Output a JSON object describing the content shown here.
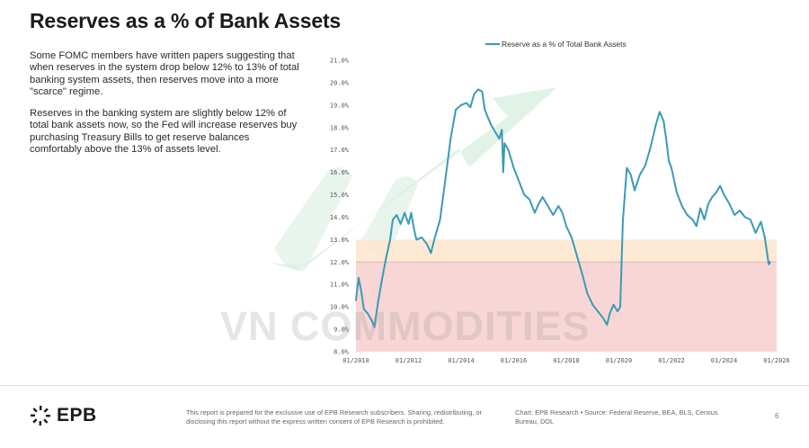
{
  "slide": {
    "title": "Reserves as a % of Bank Assets",
    "paragraph_1": "Some FOMC members have written papers suggesting that when reserves in the system drop below 12% to 13% of total banking system assets, then reserves move into a more \"scarce\" regime.",
    "paragraph_2": "Reserves in the banking system are slightly below 12% of total bank assets now, so the Fed will increase reserves buy purchasing Treasury Bills to get reserve balances comfortably above the 13% of assets level.",
    "watermark": "VN COMMODITIES"
  },
  "footer": {
    "logo_text": "EPB",
    "disclaimer": "This report is prepared for the exclusive use of EPB Research subscribers. Sharing, redistributing, or disclosing this report without the express written consent of EPB Research is prohibited.",
    "source": "Chart: EPB Research  •  Source: Federal Reserve, BEA, BLS, Census Bureau, DOL",
    "page_number": "6"
  },
  "colors": {
    "line": "#3a9bb5",
    "scarce_band": "#f7d2d0",
    "transition_band": "#fde7cf",
    "threshold_line": "#d8b9b6",
    "arrow": "#c9e8d2"
  },
  "chart_data": {
    "type": "line",
    "title": "",
    "legend": {
      "position": "top",
      "entries": [
        "Reserve as a % of Total Bank Assets"
      ]
    },
    "xlabel": "",
    "ylabel": "",
    "xlim": [
      2010.0,
      2026.0
    ],
    "ylim": [
      8.0,
      21.0
    ],
    "x_ticks": [
      {
        "value": 2010,
        "label": "01/2010"
      },
      {
        "value": 2012,
        "label": "01/2012"
      },
      {
        "value": 2014,
        "label": "01/2014"
      },
      {
        "value": 2016,
        "label": "01/2016"
      },
      {
        "value": 2018,
        "label": "01/2018"
      },
      {
        "value": 2020,
        "label": "01/2020"
      },
      {
        "value": 2022,
        "label": "01/2022"
      },
      {
        "value": 2024,
        "label": "01/2024"
      },
      {
        "value": 2026,
        "label": "01/2026"
      }
    ],
    "y_ticks": [
      {
        "value": 8,
        "label": "8.0%"
      },
      {
        "value": 9,
        "label": "9.0%"
      },
      {
        "value": 10,
        "label": "10.0%"
      },
      {
        "value": 11,
        "label": "11.0%"
      },
      {
        "value": 12,
        "label": "12.0%"
      },
      {
        "value": 13,
        "label": "13.0%"
      },
      {
        "value": 14,
        "label": "14.0%"
      },
      {
        "value": 15,
        "label": "15.0%"
      },
      {
        "value": 16,
        "label": "16.0%"
      },
      {
        "value": 17,
        "label": "17.0%"
      },
      {
        "value": 18,
        "label": "18.0%"
      },
      {
        "value": 19,
        "label": "19.0%"
      },
      {
        "value": 20,
        "label": "20.0%"
      },
      {
        "value": 21,
        "label": "21.0%"
      }
    ],
    "bands": [
      {
        "from": 8.0,
        "to": 12.0,
        "label": ""
      },
      {
        "from": 12.0,
        "to": 13.0,
        "label": ""
      }
    ],
    "threshold": 12.0,
    "series": [
      {
        "name": "Reserve as a % of Total Bank Assets",
        "points": [
          [
            2010.0,
            10.3
          ],
          [
            2010.1,
            11.3
          ],
          [
            2010.2,
            10.7
          ],
          [
            2010.3,
            9.9
          ],
          [
            2010.45,
            9.7
          ],
          [
            2010.6,
            9.4
          ],
          [
            2010.7,
            9.1
          ],
          [
            2010.85,
            10.3
          ],
          [
            2011.0,
            11.3
          ],
          [
            2011.15,
            12.2
          ],
          [
            2011.3,
            13.0
          ],
          [
            2011.4,
            13.9
          ],
          [
            2011.55,
            14.1
          ],
          [
            2011.7,
            13.7
          ],
          [
            2011.85,
            14.2
          ],
          [
            2012.0,
            13.7
          ],
          [
            2012.1,
            14.2
          ],
          [
            2012.2,
            13.5
          ],
          [
            2012.3,
            13.0
          ],
          [
            2012.5,
            13.1
          ],
          [
            2012.7,
            12.8
          ],
          [
            2012.85,
            12.4
          ],
          [
            2013.0,
            13.1
          ],
          [
            2013.2,
            13.9
          ],
          [
            2013.4,
            15.7
          ],
          [
            2013.6,
            17.5
          ],
          [
            2013.8,
            18.8
          ],
          [
            2014.0,
            19.0
          ],
          [
            2014.2,
            19.1
          ],
          [
            2014.35,
            18.9
          ],
          [
            2014.5,
            19.5
          ],
          [
            2014.65,
            19.7
          ],
          [
            2014.8,
            19.6
          ],
          [
            2014.9,
            18.8
          ],
          [
            2015.0,
            18.5
          ],
          [
            2015.15,
            18.1
          ],
          [
            2015.3,
            17.8
          ],
          [
            2015.45,
            17.5
          ],
          [
            2015.55,
            17.9
          ],
          [
            2015.6,
            16.0
          ],
          [
            2015.65,
            17.3
          ],
          [
            2015.8,
            17.0
          ],
          [
            2016.0,
            16.2
          ],
          [
            2016.2,
            15.6
          ],
          [
            2016.4,
            15.0
          ],
          [
            2016.6,
            14.8
          ],
          [
            2016.8,
            14.2
          ],
          [
            2016.95,
            14.6
          ],
          [
            2017.1,
            14.9
          ],
          [
            2017.3,
            14.5
          ],
          [
            2017.5,
            14.1
          ],
          [
            2017.7,
            14.5
          ],
          [
            2017.85,
            14.2
          ],
          [
            2018.0,
            13.6
          ],
          [
            2018.2,
            13.1
          ],
          [
            2018.4,
            12.3
          ],
          [
            2018.6,
            11.5
          ],
          [
            2018.8,
            10.6
          ],
          [
            2019.0,
            10.1
          ],
          [
            2019.2,
            9.8
          ],
          [
            2019.4,
            9.5
          ],
          [
            2019.55,
            9.2
          ],
          [
            2019.65,
            9.7
          ],
          [
            2019.8,
            10.1
          ],
          [
            2019.95,
            9.8
          ],
          [
            2020.05,
            10.0
          ],
          [
            2020.15,
            13.8
          ],
          [
            2020.3,
            16.2
          ],
          [
            2020.45,
            15.9
          ],
          [
            2020.6,
            15.2
          ],
          [
            2020.8,
            15.9
          ],
          [
            2021.0,
            16.3
          ],
          [
            2021.2,
            17.1
          ],
          [
            2021.4,
            18.1
          ],
          [
            2021.55,
            18.7
          ],
          [
            2021.7,
            18.3
          ],
          [
            2021.8,
            17.5
          ],
          [
            2021.9,
            16.5
          ],
          [
            2022.0,
            16.2
          ],
          [
            2022.2,
            15.1
          ],
          [
            2022.4,
            14.5
          ],
          [
            2022.6,
            14.1
          ],
          [
            2022.8,
            13.9
          ],
          [
            2022.95,
            13.6
          ],
          [
            2023.1,
            14.4
          ],
          [
            2023.25,
            13.9
          ],
          [
            2023.4,
            14.6
          ],
          [
            2023.55,
            14.9
          ],
          [
            2023.7,
            15.1
          ],
          [
            2023.85,
            15.4
          ],
          [
            2024.0,
            15.0
          ],
          [
            2024.2,
            14.6
          ],
          [
            2024.4,
            14.1
          ],
          [
            2024.6,
            14.3
          ],
          [
            2024.8,
            14.0
          ],
          [
            2025.0,
            13.9
          ],
          [
            2025.2,
            13.3
          ],
          [
            2025.4,
            13.8
          ],
          [
            2025.55,
            13.1
          ],
          [
            2025.7,
            11.9
          ],
          [
            2025.75,
            12.0
          ]
        ]
      }
    ]
  }
}
